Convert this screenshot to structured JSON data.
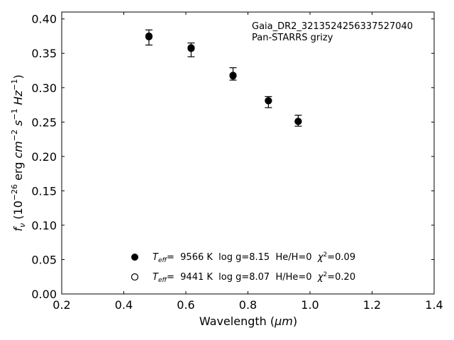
{
  "chart_data": {
    "type": "scatter",
    "xlabel_main": "Wavelength (",
    "xlabel_unit": "μm",
    "xlabel_end": ")",
    "ylabel": {
      "f": "f",
      "nu": "ν",
      "open": " (10",
      "exp26": "−26",
      "erg": " erg ",
      "cm": "cm",
      "exp_m2": "−2",
      "s": " s",
      "exp_m1a": "−1",
      "Hz": " Hz",
      "exp_m1b": "−1",
      "close": ")"
    },
    "xlim": [
      0.2,
      1.4
    ],
    "ylim": [
      0.0,
      0.41
    ],
    "x_ticks": [
      0.2,
      0.4,
      0.6,
      0.8,
      1.0,
      1.2,
      1.4
    ],
    "x_tick_labels": [
      "0.2",
      "0.4",
      "0.6",
      "0.8",
      "1.0",
      "1.2",
      "1.4"
    ],
    "y_ticks": [
      0.0,
      0.05,
      0.1,
      0.15,
      0.2,
      0.25,
      0.3,
      0.35,
      0.4
    ],
    "y_tick_labels": [
      "0.00",
      "0.05",
      "0.10",
      "0.15",
      "0.20",
      "0.25",
      "0.30",
      "0.35",
      "0.40"
    ],
    "annotation": [
      "Gaia_DR2_3213524256337527040",
      "Pan-STARRS grizy"
    ],
    "observed": {
      "x": [
        0.481,
        0.617,
        0.752,
        0.866,
        0.962
      ],
      "y": [
        0.373,
        0.355,
        0.32,
        0.279,
        0.252
      ],
      "yerr": [
        0.011,
        0.01,
        0.009,
        0.008,
        0.008
      ]
    },
    "model_fill": {
      "x": [
        0.481,
        0.617,
        0.752,
        0.866,
        0.962
      ],
      "y": [
        0.374,
        0.357,
        0.317,
        0.281,
        0.251
      ]
    },
    "model_open": {
      "x": [
        0.481,
        0.617,
        0.752,
        0.866,
        0.962
      ],
      "y": [
        0.375,
        0.358,
        0.318,
        0.281,
        0.251
      ]
    },
    "legend": [
      {
        "marker": "filled",
        "teff_T": "T",
        "teff_sub": "eff",
        "rest": "=  9566 K  log g=8.15  He/H=0  ",
        "chi": "χ",
        "chi_exp": "2",
        "chi_val": "=0.09"
      },
      {
        "marker": "open",
        "teff_T": "T",
        "teff_sub": "eff",
        "rest": "=  9441 K  log g=8.07  H/He=0  ",
        "chi": "χ",
        "chi_exp": "2",
        "chi_val": "=0.20"
      }
    ],
    "legend_position": "bottom-center",
    "grid": false
  }
}
